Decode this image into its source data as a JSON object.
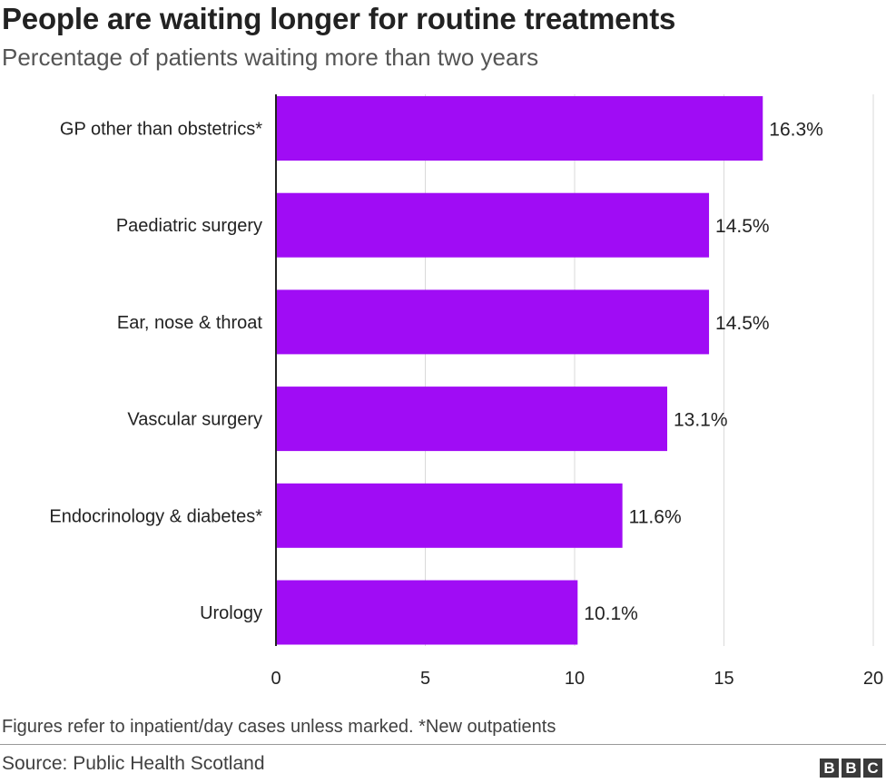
{
  "header": {
    "title": "People are waiting longer for routine treatments",
    "subtitle": "Percentage of patients waiting more than two years"
  },
  "chart_data": {
    "type": "bar",
    "orientation": "horizontal",
    "categories": [
      "GP other than obstetrics*",
      "Paediatric surgery",
      "Ear, nose & throat",
      "Vascular surgery",
      "Endocrinology & diabetes*",
      "Urology"
    ],
    "values": [
      16.3,
      14.5,
      14.5,
      13.1,
      11.6,
      10.1
    ],
    "value_labels": [
      "16.3%",
      "14.5%",
      "14.5%",
      "13.1%",
      "11.6%",
      "10.1%"
    ],
    "xlim": [
      0,
      20
    ],
    "xticks": [
      0,
      5,
      10,
      15,
      20
    ],
    "xtick_labels": [
      "0",
      "5",
      "10",
      "15",
      "20"
    ],
    "grid": true,
    "bar_color": "#a00cf5"
  },
  "footer": {
    "note": "Figures refer to inpatient/day cases unless marked. *New outpatients",
    "source": "Source: Public Health Scotland",
    "logo_letters": [
      "B",
      "B",
      "C"
    ]
  }
}
